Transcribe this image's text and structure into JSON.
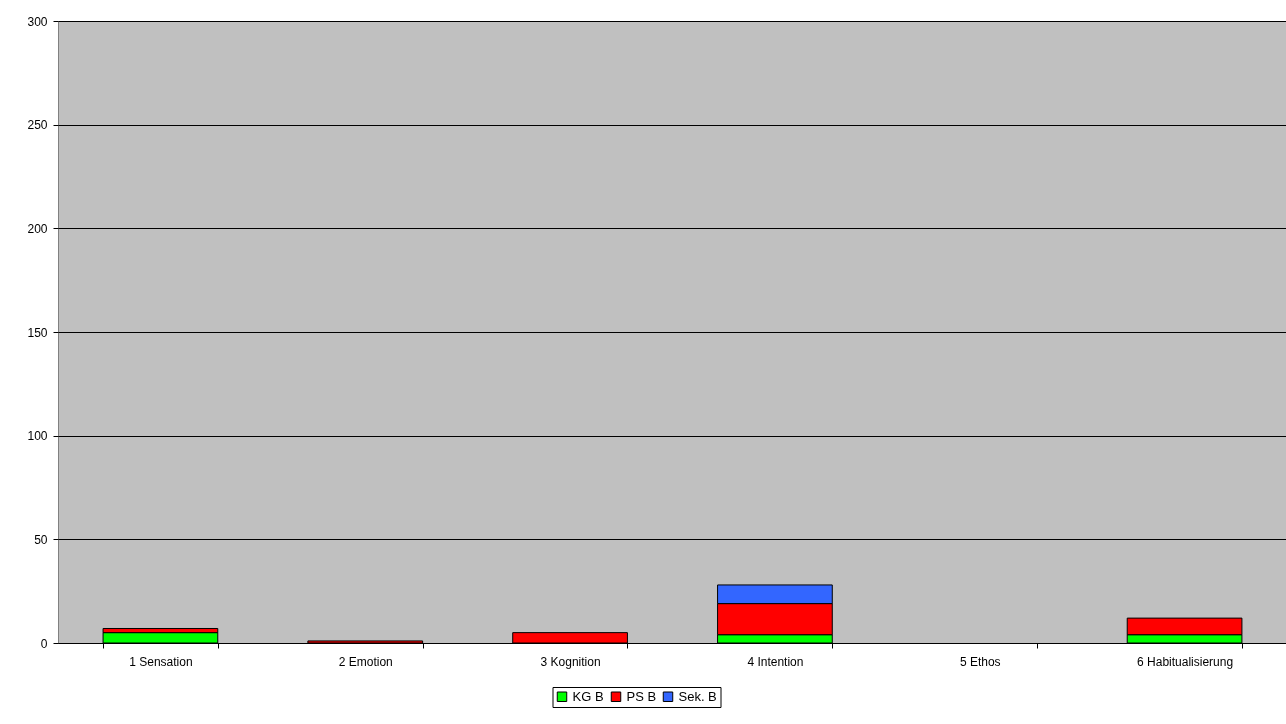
{
  "chart_data": {
    "type": "bar",
    "stacked": true,
    "categories": [
      "1 Sensation",
      "2 Emotion",
      "3 Kognition",
      "4 Intention",
      "5 Ethos",
      "6 Habitualisierung"
    ],
    "series": [
      {
        "name": "KG B",
        "color": "#00ff00",
        "values": [
          5,
          0,
          0,
          4,
          0,
          4
        ]
      },
      {
        "name": "PS B",
        "color": "#ff0000",
        "values": [
          2,
          1,
          5,
          15,
          0,
          8
        ]
      },
      {
        "name": "Sek. B",
        "color": "#3366ff",
        "values": [
          0,
          0,
          0,
          9,
          0,
          0
        ]
      }
    ],
    "ylim": [
      0,
      300
    ],
    "yticks": [
      0,
      50,
      100,
      150,
      200,
      250,
      300
    ],
    "grid": "y",
    "legend": "bottom"
  }
}
